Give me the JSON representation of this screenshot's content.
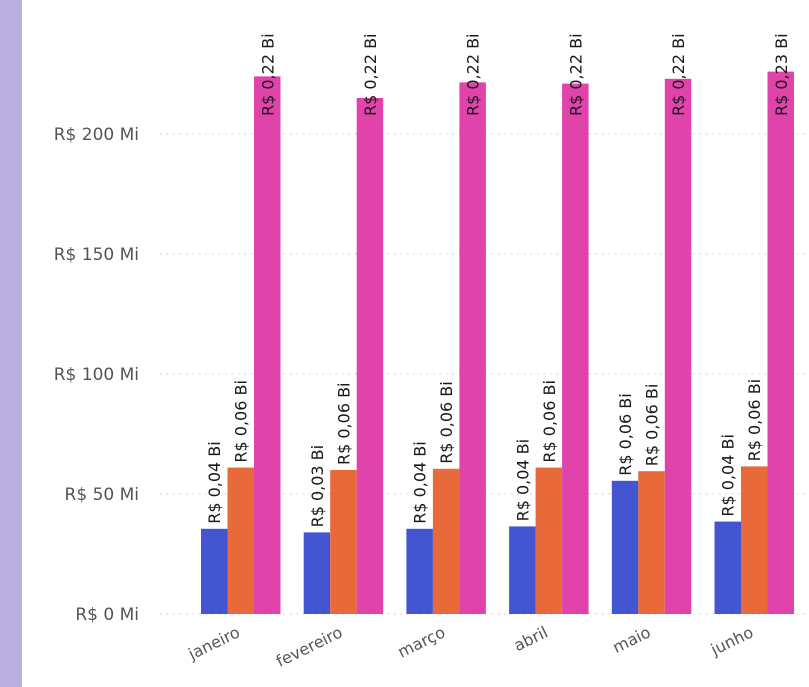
{
  "colors": {
    "accent_strip": "#b9b0e0",
    "series": [
      "#4355d1",
      "#e8693a",
      "#e044ab"
    ]
  },
  "chart_data": {
    "type": "bar",
    "categories": [
      "janeiro",
      "fevereiro",
      "março",
      "abril",
      "maio",
      "junho"
    ],
    "series": [
      {
        "values": [
          35.5,
          34.0,
          35.5,
          36.5,
          55.5,
          38.5
        ],
        "labels": [
          "R$ 0,04 Bi",
          "R$ 0,03 Bi",
          "R$ 0,04 Bi",
          "R$ 0,04 Bi",
          "R$ 0,06 Bi",
          "R$ 0,04 Bi"
        ]
      },
      {
        "values": [
          61,
          60,
          60.5,
          61,
          59.5,
          61.5
        ],
        "labels": [
          "R$ 0,06 Bi",
          "R$ 0,06 Bi",
          "R$ 0,06 Bi",
          "R$ 0,06 Bi",
          "R$ 0,06 Bi",
          "R$ 0,06 Bi"
        ]
      },
      {
        "values": [
          224,
          215,
          221.5,
          221,
          223,
          226
        ],
        "labels": [
          "R$ 0,22 Bi",
          "R$ 0,22 Bi",
          "R$ 0,22 Bi",
          "R$ 0,22 Bi",
          "R$ 0,22 Bi",
          "R$ 0,23 Bi"
        ]
      }
    ],
    "y_ticks": [
      0,
      50,
      100,
      150,
      200
    ],
    "y_tick_labels": [
      "R$ 0 Mi",
      "R$ 50 Mi",
      "R$ 100 Mi",
      "R$ 150 Mi",
      "R$ 200 Mi"
    ],
    "ylim": [
      0,
      260
    ],
    "grid": true,
    "legend": "none"
  }
}
